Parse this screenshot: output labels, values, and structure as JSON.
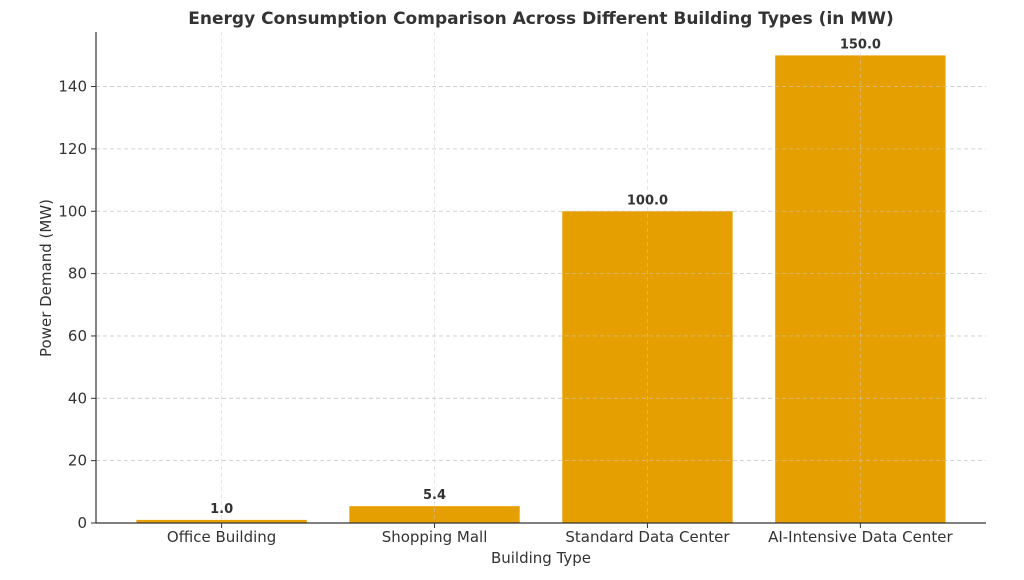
{
  "chart_data": {
    "type": "bar",
    "title": "Energy Consumption Comparison Across Different Building Types (in MW)",
    "xlabel": "Building Type",
    "ylabel": "Power Demand (MW)",
    "categories": [
      "Office Building",
      "Shopping Mall",
      "Standard Data Center",
      "AI-Intensive Data Center"
    ],
    "values": [
      1.0,
      5.4,
      100.0,
      150.0
    ],
    "data_labels": [
      "1.0",
      "5.4",
      "100.0",
      "150.0"
    ],
    "ylim": [
      0,
      157.5
    ],
    "yticks": [
      0,
      20,
      40,
      60,
      80,
      100,
      120,
      140
    ],
    "grid": true,
    "bar_color": "#E69F00"
  }
}
